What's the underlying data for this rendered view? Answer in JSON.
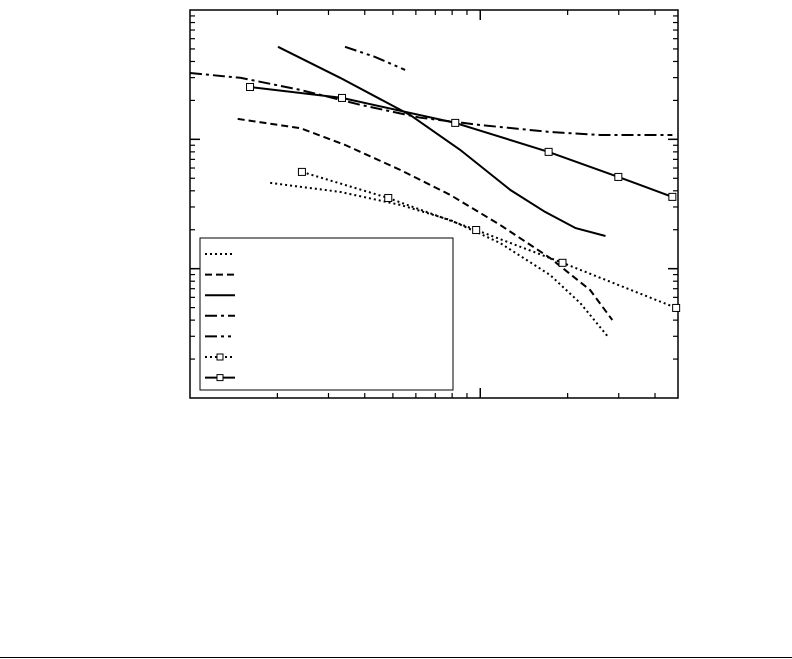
{
  "chart_data": {
    "type": "line",
    "xscale": "log",
    "yscale": "log",
    "xlim": [
      1,
      48
    ],
    "ylim": [
      0.001,
      1
    ],
    "xticks": [
      10
    ],
    "yticks": [
      0.01,
      0.1
    ],
    "grid": false,
    "legend": "lower left",
    "series": [
      {
        "color": "#000000",
        "dash": "dotted",
        "marker": false,
        "x": [
          1.89,
          3.29,
          5.3,
          7.88,
          11.7,
          17.4,
          22.1,
          27.6
        ],
        "values": [
          0.046,
          0.0392,
          0.0311,
          0.0238,
          0.0158,
          0.00894,
          0.00543,
          0.00296
        ]
      },
      {
        "color": "#000000",
        "dash": "dashed",
        "marker": false,
        "x": [
          1.46,
          2.4,
          3.42,
          5.3,
          7.88,
          11.7,
          17.4,
          23.9,
          28.5
        ],
        "values": [
          0.144,
          0.122,
          0.0905,
          0.058,
          0.0372,
          0.0218,
          0.0121,
          0.00684,
          0.00401
        ]
      },
      {
        "color": "#000000",
        "dash": "solid",
        "marker": false,
        "x": [
          2.01,
          3.29,
          5.74,
          8.53,
          12.7,
          16.7,
          21.3,
          27.0
        ],
        "values": [
          0.519,
          0.299,
          0.154,
          0.0828,
          0.0406,
          0.0275,
          0.0206,
          0.0179
        ]
      },
      {
        "color": "#000000",
        "dash": "dashdot",
        "marker": false,
        "x": [
          1,
          1.49,
          2.4,
          3.86,
          6.21,
          10,
          17.4,
          25.9,
          45.9
        ],
        "values": [
          0.326,
          0.299,
          0.241,
          0.185,
          0.147,
          0.129,
          0.114,
          0.108,
          0.108
        ]
      },
      {
        "color": "#000000",
        "dash": "dashdotdot",
        "marker": false,
        "x": [
          3.42,
          4.34,
          5.51
        ],
        "values": [
          0.519,
          0.434,
          0.344
        ]
      },
      {
        "color": "#000000",
        "dash": "dotted",
        "marker": true,
        "x": [
          2.43,
          4.82,
          9.68,
          19.2,
          47.3
        ],
        "values": [
          0.056,
          0.0352,
          0.0199,
          0.0111,
          0.00497
        ]
      },
      {
        "color": "#000000",
        "dash": "solid",
        "marker": true,
        "x": [
          1.61,
          3.34,
          8.2,
          17.2,
          29.9,
          45.9
        ],
        "values": [
          0.254,
          0.209,
          0.134,
          0.08,
          0.0512,
          0.0359
        ]
      }
    ]
  }
}
